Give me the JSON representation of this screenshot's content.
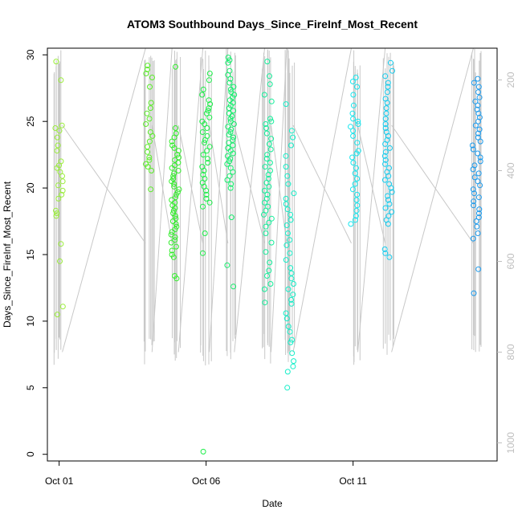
{
  "chart_data": {
    "type": "scatter",
    "title": "ATOM3 Southbound Days_Since_FireInf_Most_Recent",
    "xlabel": "Date",
    "ylabel": "Days_Since_FireInf_Most_Recent",
    "x_range_days": [
      0,
      14.5
    ],
    "xlim": [
      -0.4,
      14.9
    ],
    "ylim": [
      -0.5,
      30.5
    ],
    "y_ticks": [
      0,
      5,
      10,
      15,
      20,
      25,
      30
    ],
    "x_ticks": [
      {
        "day": 0,
        "label": "Oct 01"
      },
      {
        "day": 5,
        "label": "Oct 06"
      },
      {
        "day": 10,
        "label": "Oct 11"
      }
    ],
    "secondary_axis": {
      "ticks": [
        200,
        400,
        600,
        800,
        1000
      ],
      "range": [
        130,
        1040
      ],
      "color": "#bebebe"
    },
    "point_colors": {
      "Oct 01": "#9aee3a",
      "Oct 04": "#5aee28",
      "Oct 05": "#33ee2c",
      "Oct 06": "#1cee48",
      "Oct 07": "#14ee6c",
      "Oct 08": "#14ee9a",
      "Oct 09": "#14eec8",
      "Oct 11": "#14e6ee",
      "Oct 12": "#14ccee",
      "Oct 15": "#1b9bee"
    },
    "line_color": "#c8c8c8",
    "series": [
      {
        "x": 0.0,
        "color": "#9aee3a",
        "values": [
          29.5,
          28.1,
          24.7,
          24.5,
          24.3,
          23.8,
          23.2,
          22.8,
          22.0,
          21.7,
          21.5,
          21.2,
          20.9,
          20.5,
          20.2,
          19.8,
          19.5,
          19.2,
          18.3,
          18.1,
          17.9,
          15.8,
          14.5,
          11.1,
          10.5
        ]
      },
      {
        "x": 3.05,
        "color": "#5aee28",
        "values": [
          29.2,
          28.9,
          28.6,
          28.3,
          27.6,
          26.4,
          26.0,
          25.6,
          25.2,
          24.8,
          24.2,
          23.9,
          23.5,
          23.1,
          22.7,
          22.3,
          22.1,
          21.8,
          21.6,
          21.3,
          19.9
        ]
      },
      {
        "x": 3.95,
        "color": "#33ee2c",
        "values": [
          29.1,
          24.5,
          24.1,
          23.8,
          23.5,
          23.2,
          23.0,
          22.8,
          22.5,
          22.3,
          22.1,
          21.9,
          21.7,
          21.5,
          21.3,
          21.1,
          20.9,
          20.7,
          20.5,
          20.3,
          20.1,
          19.9,
          19.7,
          19.5,
          19.3,
          19.1,
          18.9,
          18.7,
          18.5,
          18.3,
          18.1,
          17.9,
          17.7,
          17.5,
          17.3,
          17.1,
          16.9,
          16.7,
          16.5,
          16.3,
          16.1,
          15.9,
          15.6,
          15.3,
          15.0,
          14.8,
          13.4,
          13.2
        ]
      },
      {
        "x": 5.0,
        "color": "#1cee48",
        "values": [
          28.6,
          28.1,
          27.4,
          27.0,
          26.6,
          26.3,
          26.0,
          25.8,
          25.6,
          25.3,
          25.0,
          24.8,
          24.5,
          24.2,
          23.9,
          23.6,
          23.4,
          23.1,
          22.8,
          22.5,
          22.2,
          21.9,
          21.6,
          21.3,
          21.0,
          20.7,
          20.4,
          20.1,
          19.8,
          19.5,
          19.2,
          18.9,
          18.6,
          16.6,
          15.1,
          0.2
        ]
      },
      {
        "x": 5.85,
        "color": "#14ee6c",
        "values": [
          29.8,
          29.6,
          29.4,
          28.8,
          28.5,
          28.2,
          27.9,
          27.6,
          27.4,
          27.2,
          27.0,
          26.8,
          26.6,
          26.4,
          26.2,
          26.0,
          25.8,
          25.6,
          25.4,
          25.2,
          25.0,
          24.8,
          24.6,
          24.4,
          24.2,
          24.0,
          23.8,
          23.6,
          23.4,
          23.2,
          23.0,
          22.8,
          22.6,
          22.4,
          22.2,
          22.0,
          21.8,
          21.5,
          21.2,
          20.9,
          20.6,
          20.3,
          20.0,
          17.8,
          14.2,
          12.6
        ]
      },
      {
        "x": 7.1,
        "color": "#14ee9a",
        "values": [
          29.5,
          28.4,
          27.8,
          27.0,
          26.5,
          25.2,
          25.0,
          24.8,
          24.5,
          24.1,
          23.7,
          23.3,
          22.9,
          22.5,
          22.2,
          21.9,
          21.6,
          21.3,
          21.0,
          20.7,
          20.4,
          20.1,
          19.8,
          19.5,
          19.2,
          18.9,
          18.6,
          18.3,
          18.0,
          17.7,
          17.4,
          17.1,
          16.6,
          15.9,
          15.2,
          14.4,
          13.8,
          13.4,
          12.8,
          12.4,
          11.4
        ]
      },
      {
        "x": 7.85,
        "color": "#14eec8",
        "values": [
          26.3,
          24.3,
          23.8,
          23.2,
          22.4,
          21.6,
          20.9,
          20.3,
          19.6,
          19.2,
          18.8,
          18.4,
          18.0,
          17.6,
          17.2,
          16.6,
          16.1,
          15.7,
          15.1,
          14.6,
          14.0,
          13.6,
          13.2,
          12.8,
          12.4,
          12.0,
          11.6,
          11.3,
          10.6,
          10.2,
          9.6,
          9.2,
          8.6,
          8.4,
          7.6,
          7.0,
          6.6,
          6.2,
          5.0
        ]
      },
      {
        "x": 10.05,
        "color": "#14e6ee",
        "values": [
          28.3,
          28.0,
          27.6,
          27.0,
          26.2,
          25.6,
          25.2,
          25.0,
          24.8,
          24.6,
          24.3,
          23.9,
          23.4,
          22.8,
          22.6,
          22.3,
          21.9,
          21.5,
          21.1,
          20.7,
          20.3,
          19.9,
          19.5,
          19.1,
          18.7,
          18.3,
          17.9,
          17.6,
          17.3
        ]
      },
      {
        "x": 11.2,
        "color": "#14ccee",
        "values": [
          29.4,
          28.8,
          28.4,
          27.9,
          27.6,
          27.2,
          26.7,
          26.4,
          26.0,
          25.6,
          25.2,
          24.8,
          24.5,
          24.2,
          23.9,
          23.6,
          23.3,
          23.0,
          22.7,
          22.4,
          22.1,
          21.8,
          21.5,
          21.2,
          20.9,
          20.6,
          20.3,
          20.0,
          19.7,
          19.4,
          19.1,
          18.8,
          18.5,
          18.2,
          17.9,
          17.6,
          17.3,
          15.4,
          15.1,
          14.8
        ]
      },
      {
        "x": 14.2,
        "color": "#1b9bee",
        "values": [
          28.2,
          27.9,
          27.6,
          27.2,
          26.8,
          26.5,
          26.2,
          25.9,
          25.6,
          25.3,
          25.0,
          24.7,
          24.4,
          24.1,
          23.8,
          23.5,
          23.2,
          22.9,
          22.6,
          22.3,
          22.0,
          21.7,
          21.4,
          21.1,
          20.8,
          20.5,
          20.2,
          19.9,
          19.6,
          19.3,
          19.0,
          18.7,
          18.4,
          18.1,
          17.8,
          17.5,
          17.1,
          16.6,
          16.2,
          13.9,
          12.1
        ]
      }
    ]
  }
}
